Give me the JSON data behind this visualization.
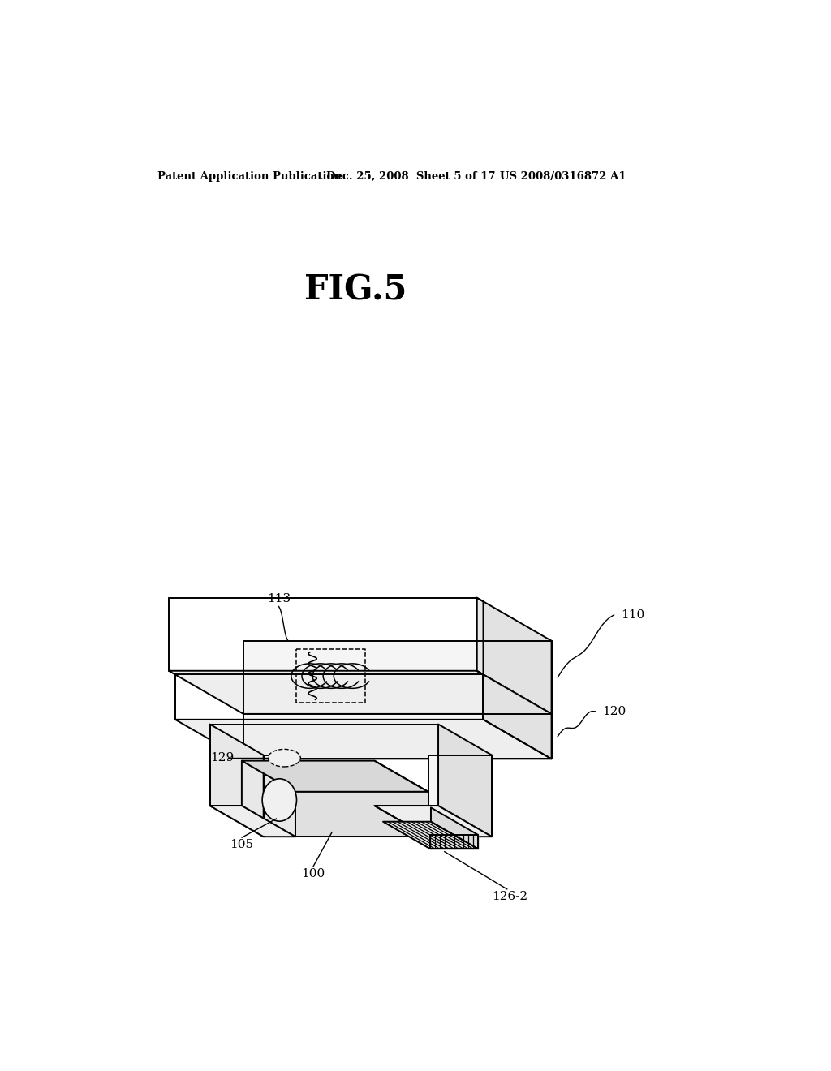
{
  "title": "FIG.5",
  "header_left": "Patent Application Publication",
  "header_center": "Dec. 25, 2008  Sheet 5 of 17",
  "header_right": "US 2008/0316872 A1",
  "bg_color": "#ffffff",
  "line_color": "#000000",
  "label_100": "100",
  "label_105": "105",
  "label_110": "110",
  "label_113": "113",
  "label_120": "120",
  "label_126_2": "126-2",
  "label_129": "129"
}
